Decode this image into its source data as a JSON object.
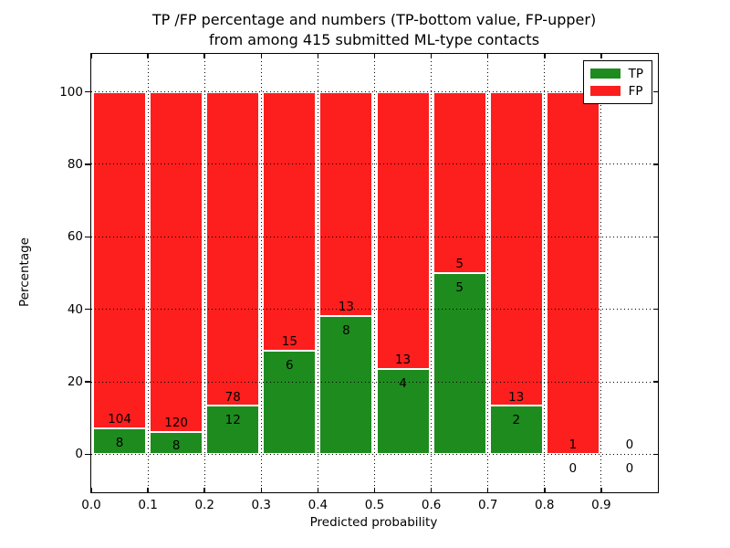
{
  "title": {
    "line1": "TP /FP percentage and numbers (TP-bottom value, FP-upper)",
    "line2": "from among 415 submitted ML-type contacts"
  },
  "chart_data": {
    "type": "stacked_bar",
    "title": "TP /FP percentage and numbers (TP-bottom value, FP-upper) from among 415 submitted ML-type contacts",
    "xlabel": "Predicted probability",
    "ylabel": "Percentage",
    "total_submitted": 415,
    "bin_width": 0.1,
    "x_bin_starts": [
      0.0,
      0.1,
      0.2,
      0.3,
      0.4,
      0.5,
      0.6,
      0.7,
      0.8,
      0.9
    ],
    "series": [
      {
        "name": "TP",
        "color": "#1e8b1e",
        "counts": [
          8,
          8,
          12,
          6,
          8,
          4,
          5,
          2,
          0,
          0
        ]
      },
      {
        "name": "FP",
        "color": "#fd1e1e",
        "counts": [
          104,
          120,
          78,
          15,
          13,
          13,
          5,
          13,
          1,
          0
        ]
      }
    ],
    "stacking": "each bin normalized to 100% (TP bottom, FP top); counts shown as labels",
    "xlim": [
      0.0,
      1.0
    ],
    "ylim": [
      -10.5,
      110.5
    ],
    "xticks": [
      0.0,
      0.1,
      0.2,
      0.3,
      0.4,
      0.5,
      0.6,
      0.7,
      0.8,
      0.9
    ],
    "xtick_labels": [
      "0.0",
      "0.1",
      "0.2",
      "0.3",
      "0.4",
      "0.5",
      "0.6",
      "0.7",
      "0.8",
      "0.9"
    ],
    "yticks": [
      0,
      20,
      40,
      60,
      80,
      100
    ],
    "ytick_labels": [
      "0",
      "20",
      "40",
      "60",
      "80",
      "100"
    ],
    "grid": {
      "on": true,
      "style": "dotted",
      "color": "#000000"
    },
    "legend": {
      "position": "upper right",
      "entries": [
        {
          "label": "TP",
          "color": "#1e8b1e"
        },
        {
          "label": "FP",
          "color": "#fd1e1e"
        }
      ]
    }
  },
  "colors": {
    "background": "#ffffff",
    "axes": "#000000",
    "text": "#000000",
    "bar_edge": "#ffffff"
  }
}
